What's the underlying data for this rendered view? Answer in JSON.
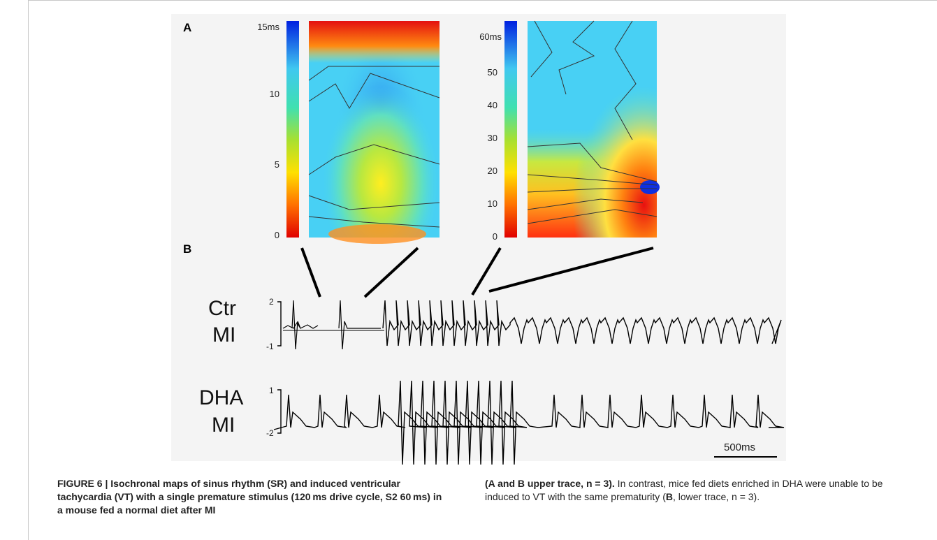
{
  "panel_a_letter": "A",
  "panel_b_letter": "B",
  "map1": {
    "ticks": [
      "15ms",
      "10",
      "5",
      "0"
    ]
  },
  "map2": {
    "ticks": [
      "60ms",
      "50",
      "40",
      "30",
      "20",
      "10",
      "0"
    ]
  },
  "traces": [
    {
      "label_line1": "Ctr",
      "label_line2": "MI",
      "scale_top": "2",
      "scale_bottom": "-1"
    },
    {
      "label_line1": "DHA",
      "label_line2": "MI",
      "scale_top": "1",
      "scale_bottom": "-2"
    }
  ],
  "scalebar": {
    "label": "500ms"
  },
  "caption": {
    "figure_label": "FIGURE 6 | ",
    "bold_left": "Isochronal maps of sinus rhythm (SR) and induced ventricular tachycardia (VT) with a single premature stimulus (120 ms drive cycle, S2 60 ms) in a mouse fed a normal diet after MI",
    "bold_right_start": "(A and B upper trace, n = 3).",
    "right_rest": " In contrast, mice fed diets enriched in DHA were unable to be induced to VT with the same prematurity (",
    "right_bold_b": "B",
    "right_end": ", lower trace, n = 3)."
  }
}
